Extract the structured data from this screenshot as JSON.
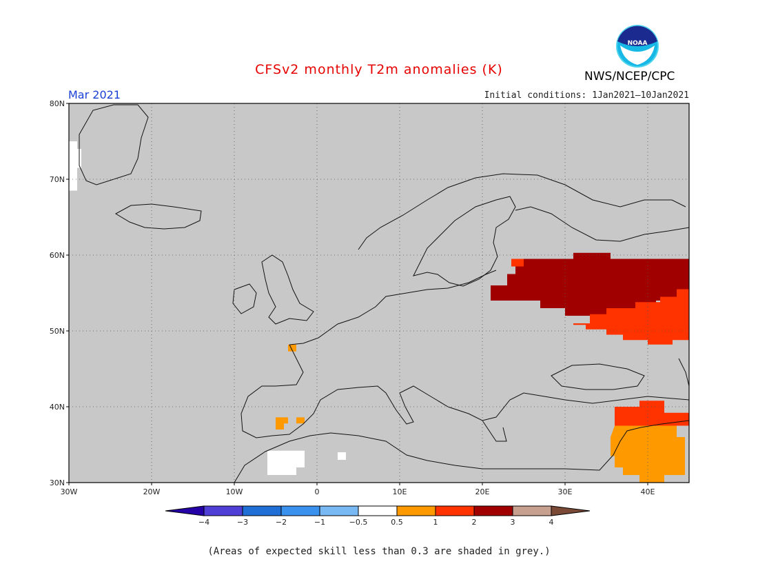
{
  "header": {
    "title": "CFSv2 monthly T2m anomalies (K)",
    "month": "Mar 2021",
    "initial_conditions": "Initial conditions: 1Jan2021–10Jan2021",
    "organization": "NWS/NCEP/CPC",
    "logo_icon": "noaa-logo-icon"
  },
  "map": {
    "lon_range": [
      -30,
      45
    ],
    "lat_range": [
      30,
      80
    ],
    "lat_labels": [
      "80N",
      "70N",
      "60N",
      "50N",
      "40N",
      "30N"
    ],
    "lon_labels": [
      "30W",
      "20W",
      "10W",
      "0",
      "10E",
      "20E",
      "30E",
      "40E"
    ],
    "grid": true,
    "background_color": "#c8c8c8",
    "anomaly_regions": [
      {
        "name": "warm-2-3K-eastern-europe",
        "category": "2 to 3",
        "color": "#a00000",
        "polygon_lonlat": [
          [
            24,
            59.5
          ],
          [
            31,
            59.5
          ],
          [
            31,
            60.3
          ],
          [
            35.5,
            60.3
          ],
          [
            35.5,
            59.5
          ],
          [
            45,
            59.5
          ],
          [
            45,
            54.5
          ],
          [
            43,
            54.5
          ],
          [
            43,
            54
          ],
          [
            41,
            54
          ],
          [
            41,
            53.5
          ],
          [
            38.5,
            53.5
          ],
          [
            38.5,
            52.8
          ],
          [
            35,
            52.8
          ],
          [
            35,
            52
          ],
          [
            30,
            52
          ],
          [
            30,
            53
          ],
          [
            27,
            53
          ],
          [
            27,
            54
          ],
          [
            21,
            54
          ],
          [
            21,
            56
          ],
          [
            23,
            56
          ],
          [
            23,
            57.5
          ],
          [
            24,
            57.5
          ]
        ]
      },
      {
        "name": "warm-1-2K-russia-ukraine",
        "category": "1 to 2",
        "color": "#ff3300",
        "polygon_lonlat": [
          [
            45,
            55.5
          ],
          [
            43.5,
            55.5
          ],
          [
            43.5,
            54.5
          ],
          [
            41.5,
            54.5
          ],
          [
            41.5,
            53.8
          ],
          [
            38.5,
            53.8
          ],
          [
            38.5,
            53
          ],
          [
            35,
            53
          ],
          [
            35,
            52.2
          ],
          [
            33,
            52.2
          ],
          [
            33,
            51
          ],
          [
            31,
            51
          ],
          [
            31,
            50.8
          ],
          [
            32.5,
            50.8
          ],
          [
            32.5,
            50.2
          ],
          [
            35,
            50.2
          ],
          [
            35,
            49.5
          ],
          [
            37,
            49.5
          ],
          [
            37,
            48.8
          ],
          [
            40,
            48.8
          ],
          [
            40,
            48.2
          ],
          [
            43,
            48.2
          ],
          [
            43,
            48.8
          ],
          [
            45,
            48.8
          ]
        ]
      },
      {
        "name": "warm-1-2K-baltic-edge",
        "category": "1 to 2",
        "color": "#ff3300",
        "polygon_lonlat": [
          [
            23.5,
            59.5
          ],
          [
            25,
            59.5
          ],
          [
            25,
            58.5
          ],
          [
            23.5,
            58.5
          ]
        ]
      },
      {
        "name": "warm-1-2K-turkey-caucasus",
        "category": "1 to 2",
        "color": "#ff3300",
        "polygon_lonlat": [
          [
            36,
            39
          ],
          [
            36,
            37.5
          ],
          [
            45,
            37.5
          ],
          [
            45,
            39.2
          ],
          [
            42,
            39.2
          ],
          [
            42,
            40.8
          ],
          [
            39,
            40.8
          ],
          [
            39,
            40
          ],
          [
            36,
            40
          ]
        ]
      },
      {
        "name": "warm-05-1K-middle-east",
        "category": "0.5 to 1",
        "color": "#ff9900",
        "polygon_lonlat": [
          [
            36,
            37.5
          ],
          [
            43.5,
            37.5
          ],
          [
            43.5,
            36
          ],
          [
            44.5,
            36
          ],
          [
            44.5,
            31
          ],
          [
            42,
            31
          ],
          [
            42,
            30
          ],
          [
            39,
            30
          ],
          [
            39,
            31
          ],
          [
            37,
            31
          ],
          [
            37,
            32
          ],
          [
            36,
            32
          ],
          [
            36,
            33.5
          ],
          [
            35.5,
            33.5
          ],
          [
            35.5,
            36
          ]
        ]
      },
      {
        "name": "warm-05-1K-spain",
        "category": "0.5 to 1",
        "color": "#ff9900",
        "polygon_lonlat": [
          [
            -5,
            38.6
          ],
          [
            -3.5,
            38.6
          ],
          [
            -3.5,
            37.8
          ],
          [
            -4,
            37.8
          ],
          [
            -4,
            37
          ],
          [
            -5,
            37
          ]
        ]
      },
      {
        "name": "warm-05-1K-spain-east",
        "category": "0.5 to 1",
        "color": "#ff9900",
        "polygon_lonlat": [
          [
            -2.5,
            38.6
          ],
          [
            -1.5,
            38.6
          ],
          [
            -1.5,
            37.8
          ],
          [
            -2.5,
            37.8
          ]
        ]
      },
      {
        "name": "warm-05-1K-brittany",
        "category": "0.5 to 1",
        "color": "#ff9900",
        "polygon_lonlat": [
          [
            -3.5,
            48.2
          ],
          [
            -2.5,
            48.2
          ],
          [
            -2.5,
            47.3
          ],
          [
            -3.5,
            47.3
          ]
        ]
      },
      {
        "name": "near-normal-north-africa",
        "category": "-0.5 to 0.5",
        "color": "#ffffff",
        "polygon_lonlat": [
          [
            -6,
            34.2
          ],
          [
            -1.5,
            34.2
          ],
          [
            -1.5,
            32
          ],
          [
            -2.5,
            32
          ],
          [
            -2.5,
            31
          ],
          [
            -6,
            31
          ]
        ]
      },
      {
        "name": "near-normal-algeria",
        "category": "-0.5 to 0.5",
        "color": "#ffffff",
        "polygon_lonlat": [
          [
            2.5,
            34
          ],
          [
            3.5,
            34
          ],
          [
            3.5,
            33
          ],
          [
            2.5,
            33
          ]
        ]
      },
      {
        "name": "near-normal-greenland",
        "category": "-0.5 to 0.5",
        "color": "#ffffff",
        "polygon_lonlat": [
          [
            -30,
            75
          ],
          [
            -29,
            75
          ],
          [
            -29,
            74
          ],
          [
            -28.5,
            74
          ],
          [
            -28.5,
            71.5
          ],
          [
            -29,
            71.5
          ],
          [
            -29,
            68.5
          ],
          [
            -30,
            68.5
          ]
        ]
      }
    ]
  },
  "colorbar": {
    "tick_labels": [
      "−4",
      "−3",
      "−2",
      "−1",
      "−0.5",
      "0.5",
      "1",
      "2",
      "3",
      "4"
    ],
    "colors": [
      "#2400a6",
      "#4f3fd6",
      "#1f6fd6",
      "#3a91ee",
      "#79b9f3",
      "#ffffff",
      "#ff9900",
      "#ff3300",
      "#a00000",
      "#c8a090",
      "#7a4a36"
    ]
  },
  "footer": {
    "skill_note": "(Areas of expected skill less than 0.3 are shaded in grey.)"
  }
}
